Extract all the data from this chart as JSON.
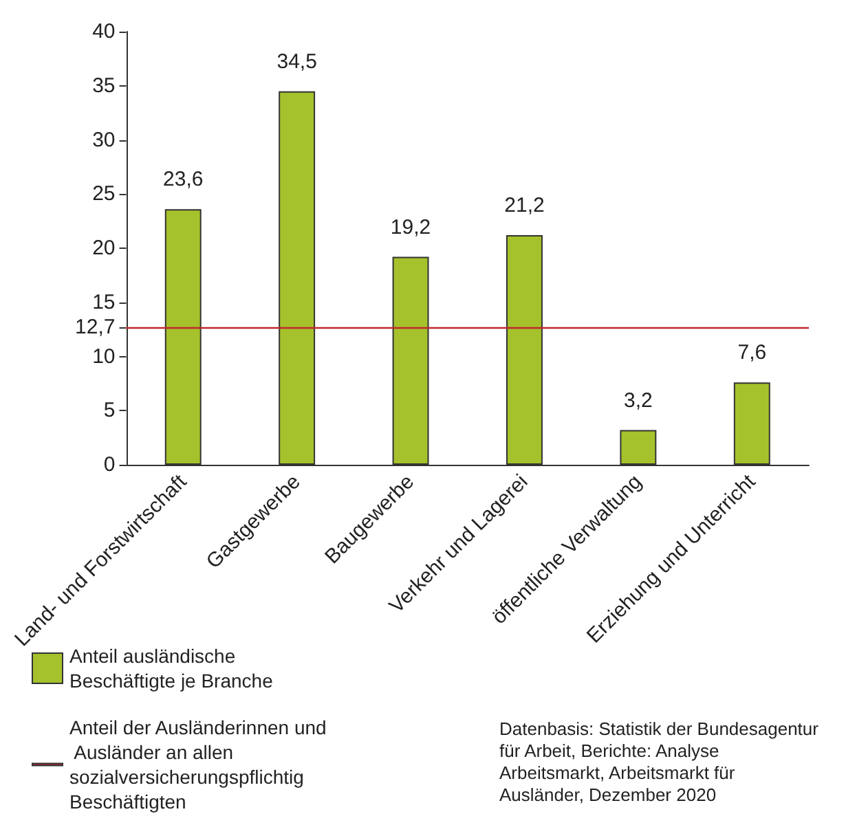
{
  "chart_data": {
    "type": "bar",
    "categories": [
      "Land- und Forstwirtschaft",
      "Gastgewerbe",
      "Baugewerbe",
      "Verkehr und Lagerei",
      "öffentliche Verwaltung",
      "Erziehung und Unterricht"
    ],
    "series": [
      {
        "name": "Anteil ausländische Beschäftigte je Branche",
        "color": "#a5c22c",
        "values": [
          23.6,
          34.5,
          19.2,
          21.2,
          3.2,
          7.6
        ],
        "value_labels": [
          "23,6",
          "34,5",
          "19,2",
          "21,2",
          "3,2",
          "7,6"
        ]
      }
    ],
    "ylim": [
      0,
      40
    ],
    "yticks": [
      0,
      5,
      10,
      15,
      20,
      25,
      30,
      35,
      40,
      {
        "value": 12.7,
        "label": "12,7"
      }
    ],
    "ref_lines": [
      {
        "axis": "y",
        "value": 12.7,
        "label": "Anteil der Ausländerinnen und Ausländer an allen sozialversicherungspflichtig Beschäftigten",
        "color": "#c1272d",
        "line_style": "solid"
      }
    ],
    "grid": false,
    "legend": "bottom left",
    "annotations": [
      "Datenbasis: Statistik der Bundesagentur für Arbeit, Berichte: Analyse Arbeitsmarkt, Arbeitsmarkt für Ausländer, Dezember 2020"
    ]
  }
}
